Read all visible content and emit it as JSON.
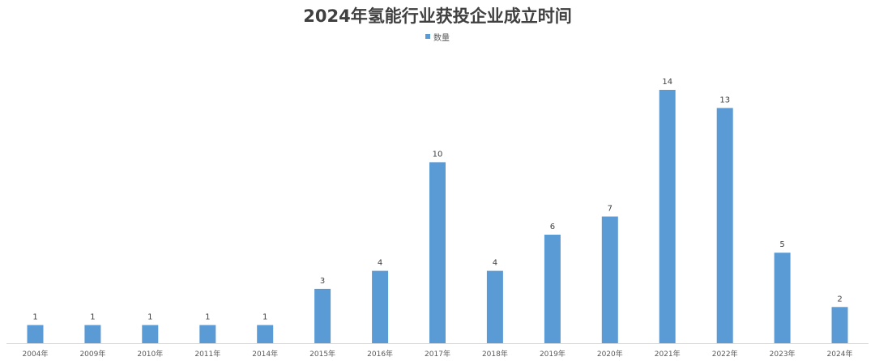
{
  "chart_data": {
    "type": "bar",
    "title": "2024年氢能行业获投企业成立时间",
    "xlabel": "",
    "ylabel": "",
    "legend": {
      "position": "top",
      "entries": [
        "数量"
      ]
    },
    "grid": false,
    "categories": [
      "2004年",
      "2009年",
      "2010年",
      "2011年",
      "2014年",
      "2015年",
      "2016年",
      "2017年",
      "2018年",
      "2019年",
      "2020年",
      "2021年",
      "2022年",
      "2023年",
      "2024年"
    ],
    "series": [
      {
        "name": "数量",
        "values": [
          1,
          1,
          1,
          1,
          1,
          3,
          4,
          10,
          4,
          6,
          7,
          14,
          13,
          5,
          2
        ]
      }
    ],
    "ylim": [
      0,
      14
    ],
    "color": "#5b9bd5"
  }
}
